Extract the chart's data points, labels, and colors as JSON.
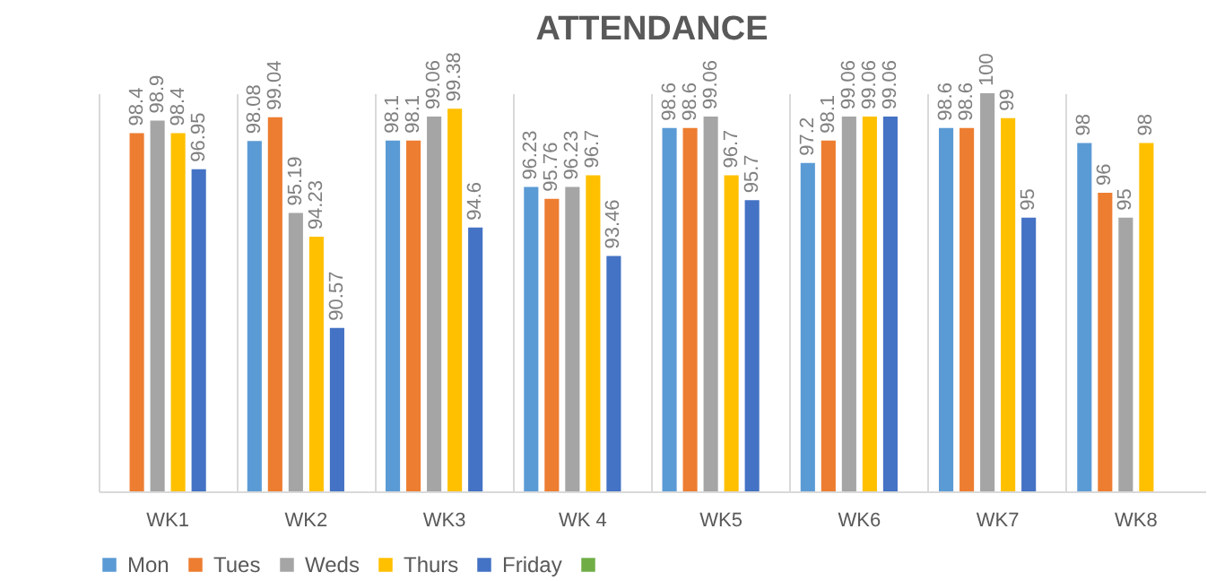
{
  "chart_data": {
    "type": "bar",
    "title": "ATTENDANCE",
    "categories": [
      "WK1",
      "WK2",
      "WK3",
      "WK 4",
      "WK5",
      "WK6",
      "WK7",
      "WK8"
    ],
    "series": [
      {
        "name": "Mon",
        "color": "#5b9bd5",
        "values": [
          null,
          98.08,
          98.1,
          96.23,
          98.6,
          97.2,
          98.6,
          98
        ]
      },
      {
        "name": "Tues",
        "color": "#ed7d31",
        "values": [
          98.4,
          99.04,
          98.1,
          95.76,
          98.6,
          98.1,
          98.6,
          96
        ]
      },
      {
        "name": "Weds",
        "color": "#a5a5a5",
        "values": [
          98.9,
          95.19,
          99.06,
          96.23,
          99.06,
          99.06,
          100,
          95
        ]
      },
      {
        "name": "Thurs",
        "color": "#ffc000",
        "values": [
          98.4,
          94.23,
          99.38,
          96.7,
          96.7,
          99.06,
          99,
          98
        ]
      },
      {
        "name": "Friday",
        "color": "#4472c4",
        "values": [
          96.95,
          90.57,
          94.6,
          93.46,
          95.7,
          99.06,
          95,
          null
        ]
      },
      {
        "color": "#70ad47",
        "values": [
          null,
          null,
          null,
          null,
          null,
          null,
          null,
          null
        ]
      }
    ],
    "ylim": [
      84,
      100
    ],
    "data_labels": true,
    "tick_labels": "x",
    "legend": "bottom"
  }
}
